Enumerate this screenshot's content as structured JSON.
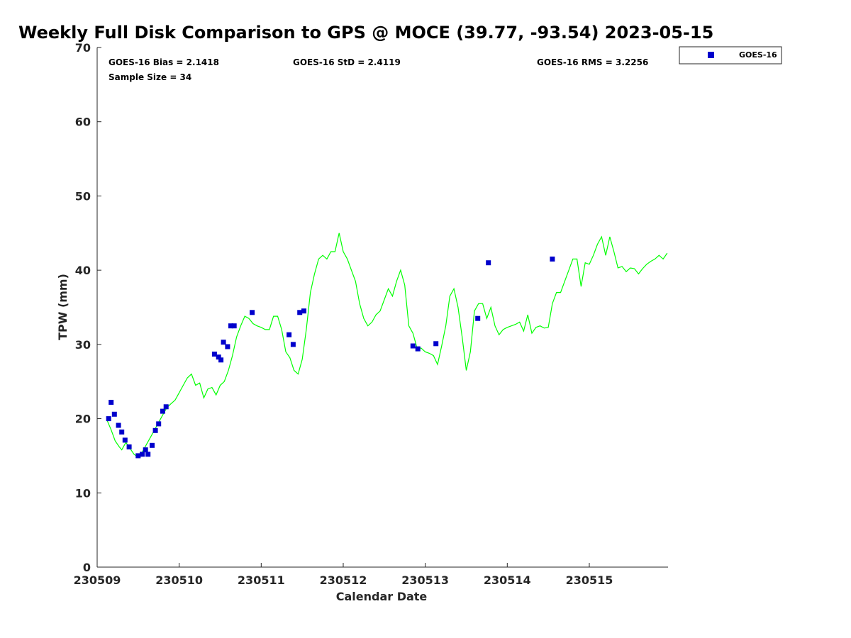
{
  "chart_data": {
    "type": "scatter",
    "title": "Weekly Full Disk Comparison to GPS @ MOCE (39.77, -93.54) 2023-05-15",
    "xlabel": "Calendar Date",
    "ylabel": "TPW (mm)",
    "xlim": [
      0,
      6.96
    ],
    "ylim": [
      0,
      70
    ],
    "yticks": [
      0,
      10,
      20,
      30,
      40,
      50,
      60,
      70
    ],
    "xticks": [
      {
        "pos": 0,
        "label": "230509"
      },
      {
        "pos": 1,
        "label": "230510"
      },
      {
        "pos": 2,
        "label": "230511"
      },
      {
        "pos": 3,
        "label": "230512"
      },
      {
        "pos": 4,
        "label": "230513"
      },
      {
        "pos": 5,
        "label": "230514"
      },
      {
        "pos": 6,
        "label": "230515"
      }
    ],
    "stats": {
      "bias": "GOES-16 Bias = 2.1418",
      "std": "GOES-16 StD = 2.4119",
      "rms": "GOES-16 RMS = 3.2256",
      "sample": "Sample Size = 34"
    },
    "legend": {
      "label": "GOES-16",
      "color": "#0000cc",
      "position": "top-right"
    },
    "series": [
      {
        "name": "GOES-16",
        "kind": "scatter",
        "color": "#0000cc",
        "x": [
          0.14,
          0.17,
          0.21,
          0.26,
          0.3,
          0.34,
          0.39,
          0.5,
          0.55,
          0.59,
          0.62,
          0.67,
          0.71,
          0.75,
          0.8,
          0.84,
          1.43,
          1.48,
          1.51,
          1.54,
          1.59,
          1.63,
          1.67,
          1.89,
          2.34,
          2.39,
          2.47,
          2.52,
          3.85,
          3.91,
          4.13,
          4.64,
          4.77,
          5.55
        ],
        "y": [
          20.0,
          22.2,
          20.6,
          19.1,
          18.2,
          17.1,
          16.2,
          15.0,
          15.2,
          15.8,
          15.2,
          16.4,
          18.4,
          19.3,
          21.0,
          21.6,
          28.7,
          28.3,
          27.9,
          30.3,
          29.7,
          32.5,
          32.5,
          34.3,
          31.3,
          30.0,
          34.3,
          34.5,
          29.8,
          29.4,
          30.1,
          33.5,
          41.0,
          41.5
        ]
      },
      {
        "name": "GPS",
        "kind": "line",
        "color": "#00ff00",
        "x": [
          0.12,
          0.17,
          0.22,
          0.27,
          0.3,
          0.35,
          0.4,
          0.45,
          0.5,
          0.55,
          0.6,
          0.65,
          0.7,
          0.75,
          0.8,
          0.85,
          0.9,
          0.95,
          1.0,
          1.05,
          1.1,
          1.15,
          1.2,
          1.25,
          1.3,
          1.35,
          1.4,
          1.45,
          1.5,
          1.55,
          1.6,
          1.65,
          1.7,
          1.75,
          1.8,
          1.85,
          1.9,
          1.95,
          2.0,
          2.05,
          2.1,
          2.15,
          2.2,
          2.25,
          2.3,
          2.35,
          2.4,
          2.45,
          2.5,
          2.55,
          2.6,
          2.65,
          2.7,
          2.75,
          2.8,
          2.85,
          2.9,
          2.95,
          3.0,
          3.05,
          3.1,
          3.15,
          3.2,
          3.25,
          3.3,
          3.35,
          3.4,
          3.45,
          3.5,
          3.55,
          3.6,
          3.65,
          3.7,
          3.75,
          3.8,
          3.85,
          3.9,
          3.95,
          4.0,
          4.05,
          4.1,
          4.15,
          4.2,
          4.25,
          4.3,
          4.35,
          4.4,
          4.45,
          4.5,
          4.55,
          4.6,
          4.65,
          4.7,
          4.75,
          4.8,
          4.85,
          4.9,
          4.95,
          5.0,
          5.05,
          5.1,
          5.15,
          5.2,
          5.25,
          5.3,
          5.35,
          5.4,
          5.45,
          5.5,
          5.55,
          5.6,
          5.65,
          5.7,
          5.75,
          5.8,
          5.85,
          5.9,
          5.95,
          6.0,
          6.05,
          6.1,
          6.15,
          6.2,
          6.25,
          6.3,
          6.35,
          6.4,
          6.45,
          6.5,
          6.55,
          6.6,
          6.65,
          6.7,
          6.75,
          6.8,
          6.85,
          6.9,
          6.95
        ],
        "y": [
          19.8,
          18.5,
          17.0,
          16.2,
          15.8,
          16.8,
          16.0,
          15.2,
          14.8,
          15.5,
          16.5,
          17.5,
          18.5,
          19.5,
          20.5,
          21.5,
          22.0,
          22.5,
          23.5,
          24.5,
          25.5,
          26.0,
          24.5,
          24.8,
          22.8,
          24.0,
          24.2,
          23.2,
          24.5,
          25.0,
          26.5,
          28.5,
          31.0,
          32.5,
          33.8,
          33.5,
          32.8,
          32.5,
          32.3,
          32.0,
          32.0,
          33.8,
          33.8,
          32.0,
          29.0,
          28.2,
          26.5,
          26.0,
          28.0,
          32.0,
          37.0,
          39.5,
          41.5,
          42.0,
          41.5,
          42.5,
          42.5,
          45.0,
          42.5,
          41.5,
          40.0,
          38.5,
          35.5,
          33.5,
          32.5,
          33.0,
          34.0,
          34.5,
          36.0,
          37.5,
          36.5,
          38.5,
          40.0,
          38.0,
          32.5,
          31.5,
          29.5,
          29.5,
          29.0,
          28.8,
          28.5,
          27.3,
          29.8,
          32.5,
          36.5,
          37.5,
          35.0,
          31.0,
          26.5,
          29.0,
          34.5,
          35.5,
          35.5,
          33.5,
          35.0,
          32.5,
          31.3,
          32.0,
          32.3,
          32.5,
          32.7,
          33.0,
          31.8,
          34.0,
          31.5,
          32.3,
          32.5,
          32.2,
          32.3,
          35.5,
          37.0,
          37.0,
          38.5,
          40.0,
          41.5,
          41.5,
          37.8,
          41.0,
          40.8,
          42.0,
          43.5,
          44.5,
          42.0,
          44.5,
          42.5,
          40.3,
          40.5,
          39.8,
          40.3,
          40.2,
          39.5,
          40.2,
          40.8,
          41.2,
          41.5,
          42.0,
          41.5,
          42.3
        ]
      }
    ]
  }
}
